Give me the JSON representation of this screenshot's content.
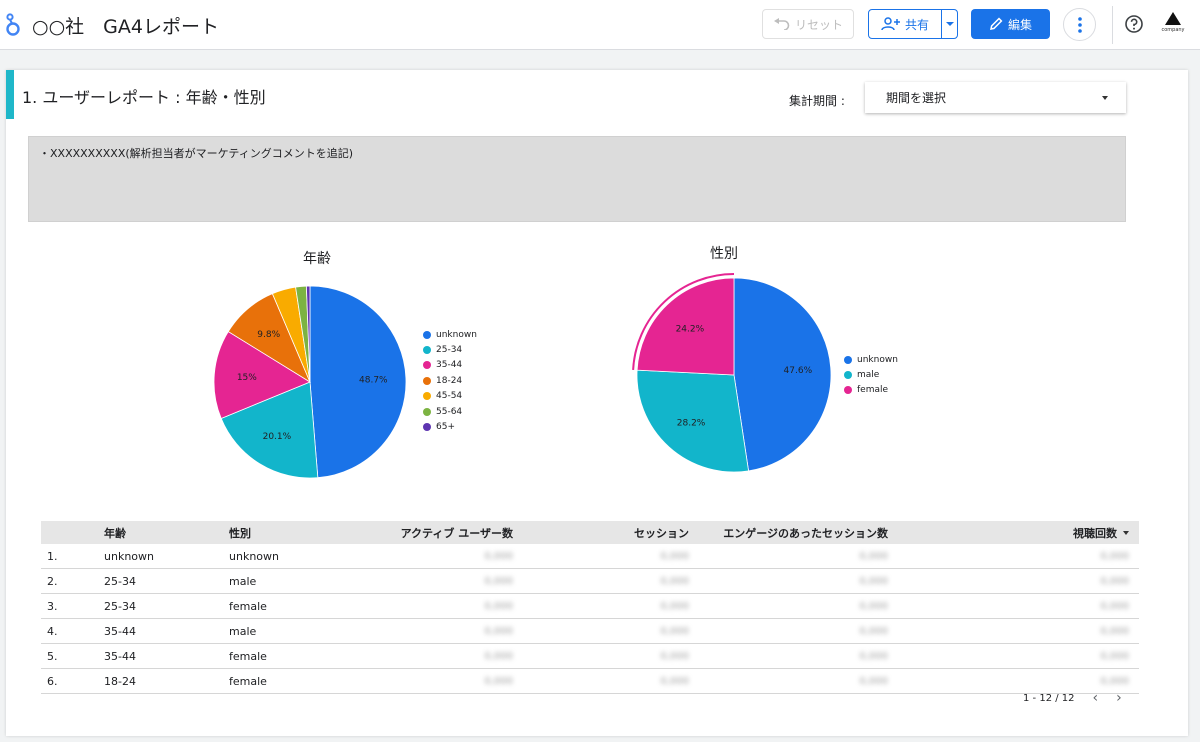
{
  "header": {
    "title": "○○社　GA4レポート",
    "reset_label": "リセット",
    "share_label": "共有",
    "edit_label": "編集",
    "account_label": "company"
  },
  "section": {
    "title": "1.  ユーザーレポート : 年齢・性別",
    "period_label": "集計期間 :",
    "period_select": "期間を選択",
    "comment": "・XXXXXXXXXX(解析担当者がマーケティングコメントを追記)"
  },
  "colors": {
    "accent": "#1fb7c9",
    "brand_blue": "#1a73e8"
  },
  "chart_data": [
    {
      "type": "pie",
      "title": "年齢",
      "categories": [
        "unknown",
        "25-34",
        "35-44",
        "18-24",
        "45-54",
        "55-64",
        "65+"
      ],
      "values": [
        48.7,
        20.1,
        15.0,
        9.8,
        4.0,
        1.8,
        0.6
      ],
      "value_labels": [
        "48.7%",
        "20.1%",
        "15%",
        "9.8%",
        "",
        "",
        ""
      ],
      "colors": [
        "#1a73e8",
        "#12b5cb",
        "#e52592",
        "#e8710a",
        "#f9ab00",
        "#7cb342",
        "#5e35b1"
      ],
      "legend": "right"
    },
    {
      "type": "pie",
      "title": "性別",
      "categories": [
        "unknown",
        "male",
        "female"
      ],
      "values": [
        47.6,
        28.2,
        24.2
      ],
      "value_labels": [
        "47.6%",
        "28.2%",
        "24.2%"
      ],
      "colors": [
        "#1a73e8",
        "#12b5cb",
        "#e52592"
      ],
      "highlight": "female",
      "legend": "right"
    }
  ],
  "table": {
    "columns": [
      "年齢",
      "性別",
      "アクティブ ユーザー数",
      "セッション",
      "エンゲージのあったセッション数",
      "視聴回数"
    ],
    "rows": [
      {
        "index": "1.",
        "age": "unknown",
        "gender": "unknown",
        "active_users": "0,000",
        "sessions": "0,000",
        "engaged_sessions": "0,000",
        "views": "0,000"
      },
      {
        "index": "2.",
        "age": "25-34",
        "gender": "male",
        "active_users": "0,000",
        "sessions": "0,000",
        "engaged_sessions": "0,000",
        "views": "0,000"
      },
      {
        "index": "3.",
        "age": "25-34",
        "gender": "female",
        "active_users": "0,000",
        "sessions": "0,000",
        "engaged_sessions": "0,000",
        "views": "0,000"
      },
      {
        "index": "4.",
        "age": "35-44",
        "gender": "male",
        "active_users": "0,000",
        "sessions": "0,000",
        "engaged_sessions": "0,000",
        "views": "0,000"
      },
      {
        "index": "5.",
        "age": "35-44",
        "gender": "female",
        "active_users": "0,000",
        "sessions": "0,000",
        "engaged_sessions": "0,000",
        "views": "0,000"
      },
      {
        "index": "6.",
        "age": "18-24",
        "gender": "female",
        "active_users": "0,000",
        "sessions": "0,000",
        "engaged_sessions": "0,000",
        "views": "0,000"
      }
    ],
    "pagination": "1 - 12 / 12"
  }
}
